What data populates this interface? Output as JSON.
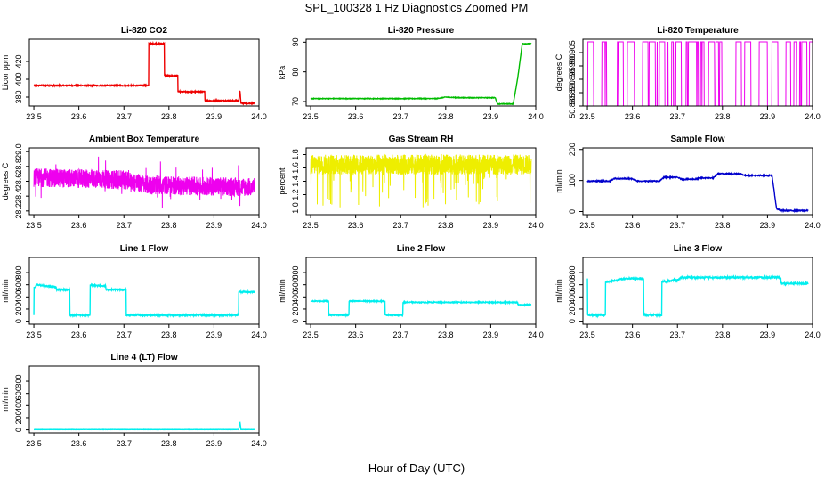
{
  "figure": {
    "title": "SPL_100328  1 Hz Diagnostics Zoomed PM",
    "xlabel": "Hour of Day (UTC)"
  },
  "chart_data": [
    {
      "type": "line",
      "title": "Li-820 CO2",
      "ylabel": "Licor ppm",
      "color": "#ee0000",
      "xlim": [
        23.49,
        24.0
      ],
      "ylim": [
        370,
        445
      ],
      "xticks": [
        23.5,
        23.6,
        23.7,
        23.8,
        23.9,
        24.0
      ],
      "yticks": [
        380,
        400,
        420
      ],
      "noise": 0.6,
      "series": [
        {
          "x": [
            23.5,
            23.755,
            23.755,
            23.79,
            23.79,
            23.82,
            23.82,
            23.88,
            23.88,
            23.955,
            23.957,
            23.958,
            23.96,
            23.96,
            23.99
          ],
          "y": [
            393,
            393,
            440,
            440,
            404,
            404,
            386,
            386,
            376,
            376,
            386,
            386,
            373,
            373,
            373
          ]
        }
      ]
    },
    {
      "type": "line",
      "title": "Li-820 Pressure",
      "ylabel": "kPa",
      "color": "#00bb00",
      "xlim": [
        23.49,
        24.0
      ],
      "ylim": [
        68.5,
        91
      ],
      "xticks": [
        23.5,
        23.6,
        23.7,
        23.8,
        23.9,
        24.0
      ],
      "yticks": [
        70,
        80,
        90
      ],
      "noise": 0.1,
      "series": [
        {
          "x": [
            23.5,
            23.78,
            23.8,
            23.83,
            23.91,
            23.915,
            23.95,
            23.96,
            23.97,
            23.97,
            23.99
          ],
          "y": [
            71,
            71,
            71.5,
            71.3,
            71.3,
            69.2,
            69.2,
            78,
            89.5,
            89.5,
            89.5
          ]
        }
      ]
    },
    {
      "type": "line",
      "title": "Li-820 Temperature",
      "ylabel": "degrees C",
      "color": "#ee00ee",
      "xlim": [
        23.49,
        24.0
      ],
      "ylim": [
        50.885,
        50.91
      ],
      "xticks": [
        23.5,
        23.6,
        23.7,
        23.8,
        23.9,
        24.0
      ],
      "yticks": [
        50.885,
        50.89,
        50.895,
        50.9,
        50.905
      ],
      "pattern": "bursts",
      "series": [
        {
          "x": [
            23.5,
            24.0
          ],
          "y": [
            50.885,
            50.909
          ]
        }
      ]
    },
    {
      "type": "line",
      "title": "Ambient Box Temperature",
      "ylabel": "degrees C",
      "color": "#ee00ee",
      "xlim": [
        23.49,
        24.0
      ],
      "ylim": [
        28.15,
        29.05
      ],
      "xticks": [
        23.5,
        23.6,
        23.7,
        23.8,
        23.9,
        24.0
      ],
      "yticks": [
        28.2,
        28.4,
        28.6,
        28.8,
        29.0
      ],
      "pattern": "band",
      "series": [
        {
          "x": [
            23.5,
            23.7,
            23.75,
            23.99
          ],
          "y": [
            28.65,
            28.62,
            28.55,
            28.52
          ]
        }
      ]
    },
    {
      "type": "line",
      "title": "Gas Stream RH",
      "ylabel": "percent",
      "color": "#eeee00",
      "xlim": [
        23.49,
        24.0
      ],
      "ylim": [
        0.9,
        1.9
      ],
      "xticks": [
        23.5,
        23.6,
        23.7,
        23.8,
        23.9,
        24.0
      ],
      "yticks": [
        1.0,
        1.2,
        1.4,
        1.6,
        1.8
      ],
      "pattern": "rh",
      "series": [
        {
          "x": [
            23.5,
            23.99
          ],
          "y": [
            1.65,
            1.65
          ]
        }
      ]
    },
    {
      "type": "line",
      "title": "Sample Flow",
      "ylabel": "ml/min",
      "color": "#0000cc",
      "xlim": [
        23.49,
        24.0
      ],
      "ylim": [
        -10,
        205
      ],
      "xticks": [
        23.5,
        23.6,
        23.7,
        23.8,
        23.9,
        24.0
      ],
      "yticks": [
        0,
        100,
        200
      ],
      "noise": 1.5,
      "series": [
        {
          "x": [
            23.5,
            23.55,
            23.56,
            23.6,
            23.61,
            23.66,
            23.67,
            23.7,
            23.71,
            23.74,
            23.75,
            23.78,
            23.79,
            23.84,
            23.85,
            23.91,
            23.92,
            23.93,
            23.99
          ],
          "y": [
            98,
            98,
            106,
            106,
            98,
            98,
            110,
            110,
            104,
            104,
            108,
            108,
            122,
            122,
            116,
            116,
            10,
            3,
            3
          ]
        }
      ]
    },
    {
      "type": "line",
      "title": "Line 1 Flow",
      "ylabel": "ml/min",
      "color": "#00eeee",
      "xlim": [
        23.49,
        24.0
      ],
      "ylim": [
        -50,
        1050
      ],
      "xticks": [
        23.5,
        23.6,
        23.7,
        23.8,
        23.9,
        24.0
      ],
      "yticks": [
        0,
        200,
        400,
        600,
        800
      ],
      "noise": 12,
      "series": [
        {
          "x": [
            23.5,
            23.5,
            23.505,
            23.505,
            23.55,
            23.55,
            23.58,
            23.58,
            23.625,
            23.625,
            23.66,
            23.66,
            23.705,
            23.705,
            23.955,
            23.955,
            23.99
          ],
          "y": [
            100,
            560,
            560,
            600,
            560,
            520,
            520,
            100,
            100,
            600,
            580,
            520,
            520,
            100,
            100,
            480,
            480
          ]
        }
      ]
    },
    {
      "type": "line",
      "title": "Line 2 Flow",
      "ylabel": "ml/min",
      "color": "#00eeee",
      "xlim": [
        23.49,
        24.0
      ],
      "ylim": [
        -50,
        1050
      ],
      "xticks": [
        23.5,
        23.6,
        23.7,
        23.8,
        23.9,
        24.0
      ],
      "yticks": [
        0,
        200,
        400,
        600,
        800
      ],
      "noise": 8,
      "series": [
        {
          "x": [
            23.5,
            23.54,
            23.54,
            23.585,
            23.585,
            23.665,
            23.665,
            23.705,
            23.705,
            23.96,
            23.96,
            23.99
          ],
          "y": [
            330,
            330,
            100,
            100,
            330,
            330,
            100,
            100,
            310,
            310,
            270,
            270
          ]
        }
      ]
    },
    {
      "type": "line",
      "title": "Line 3 Flow",
      "ylabel": "ml/min",
      "color": "#00eeee",
      "xlim": [
        23.49,
        24.0
      ],
      "ylim": [
        -50,
        1050
      ],
      "xticks": [
        23.5,
        23.6,
        23.7,
        23.8,
        23.9,
        24.0
      ],
      "yticks": [
        0,
        200,
        400,
        600,
        800
      ],
      "noise": 15,
      "series": [
        {
          "x": [
            23.5,
            23.5,
            23.503,
            23.503,
            23.54,
            23.54,
            23.58,
            23.62,
            23.625,
            23.625,
            23.665,
            23.665,
            23.7,
            23.71,
            23.93,
            23.93,
            23.99
          ],
          "y": [
            700,
            100,
            100,
            100,
            100,
            640,
            700,
            700,
            700,
            100,
            100,
            650,
            680,
            720,
            720,
            620,
            620
          ]
        }
      ]
    },
    {
      "type": "line",
      "title": "Line 4 (LT) Flow",
      "ylabel": "ml/min",
      "color": "#00eeee",
      "xlim": [
        23.49,
        24.0
      ],
      "ylim": [
        -50,
        1050
      ],
      "xticks": [
        23.5,
        23.6,
        23.7,
        23.8,
        23.9,
        24.0
      ],
      "yticks": [
        0,
        200,
        400,
        600,
        800
      ],
      "noise": 2,
      "series": [
        {
          "x": [
            23.5,
            23.955,
            23.957,
            23.958,
            23.96,
            23.99
          ],
          "y": [
            5,
            5,
            120,
            120,
            5,
            5
          ]
        }
      ]
    }
  ]
}
